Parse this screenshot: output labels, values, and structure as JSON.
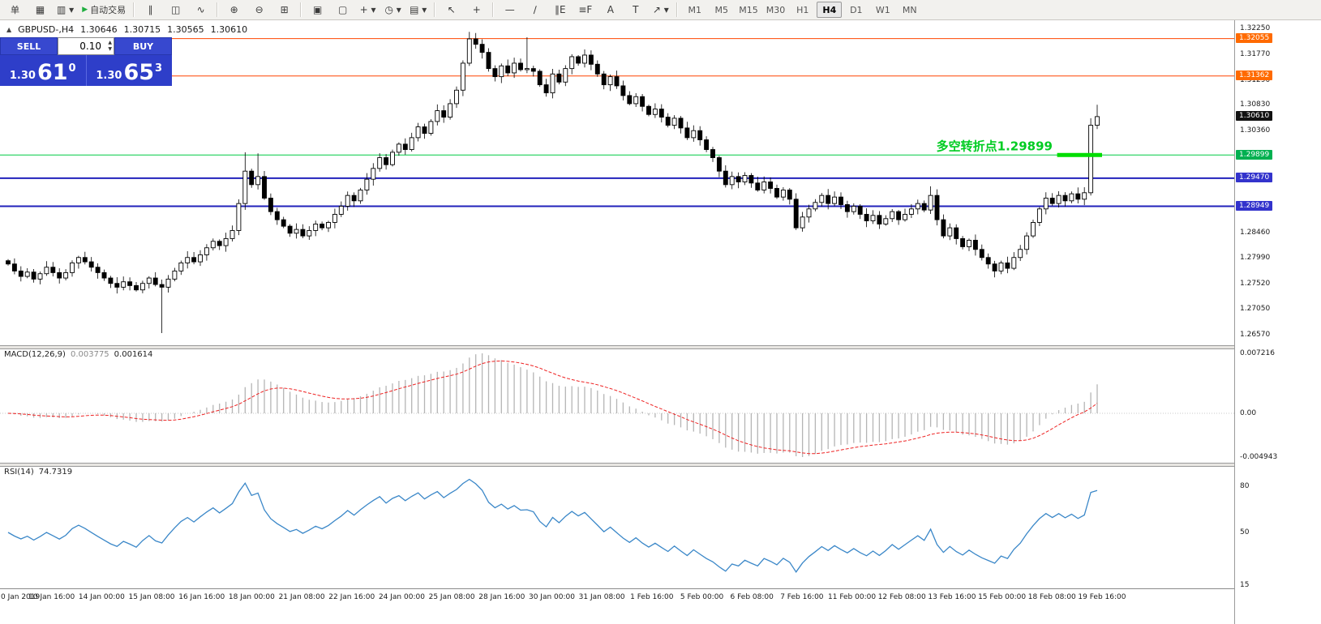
{
  "toolbar": {
    "items": [
      {
        "name": "new-order-button",
        "text": "单",
        "cls": "cn"
      },
      {
        "name": "new-chart-button",
        "text": "▦"
      },
      {
        "name": "profiles-button",
        "text": "▥ ▾"
      },
      {
        "name": "auto-trading-button",
        "text": "自动交易",
        "icon": "▶",
        "cls": "cn"
      },
      {
        "sep": true
      },
      {
        "name": "bar-chart-button",
        "text": "∥"
      },
      {
        "name": "candlestick-chart-button",
        "text": "◫"
      },
      {
        "name": "line-chart-button",
        "text": "∿"
      },
      {
        "sep": true
      },
      {
        "name": "zoom-in-button",
        "text": "⊕"
      },
      {
        "name": "zoom-out-button",
        "text": "⊖"
      },
      {
        "name": "tile-windows-button",
        "text": "⊞"
      },
      {
        "sep": true
      },
      {
        "name": "cascade-windows-button",
        "text": "▣"
      },
      {
        "name": "arrange-windows-button",
        "text": "▢"
      },
      {
        "name": "add-indicator-button",
        "text": "+ ▾"
      },
      {
        "name": "periods-button",
        "text": "◷ ▾"
      },
      {
        "name": "templates-button",
        "text": "▤ ▾"
      },
      {
        "sep": true
      },
      {
        "name": "cursor-button",
        "text": "↖"
      },
      {
        "name": "crosshair-button",
        "text": "+"
      },
      {
        "sep": true
      },
      {
        "name": "horizontal-line-button",
        "text": "—"
      },
      {
        "name": "trendline-button",
        "text": "∕"
      },
      {
        "name": "equidistant-channel-button",
        "text": "∥E"
      },
      {
        "name": "fibonacci-button",
        "text": "≡F"
      },
      {
        "name": "text-button",
        "text": "A"
      },
      {
        "name": "text-label-button",
        "text": "T"
      },
      {
        "name": "arrow-tools-button",
        "text": "↗ ▾"
      },
      {
        "sep": true
      }
    ],
    "timeframes": [
      "M1",
      "M5",
      "M15",
      "M30",
      "H1",
      "H4",
      "D1",
      "W1",
      "MN"
    ],
    "active_timeframe": "H4"
  },
  "chart_header": {
    "collapse_icon": "▲",
    "symbol_period": "GBPUSD-,H4",
    "open": "1.30646",
    "high": "1.30715",
    "low": "1.30565",
    "close": "1.30610"
  },
  "trade_panel": {
    "sell_label": "SELL",
    "buy_label": "BUY",
    "volume": "0.10",
    "spin_up": "▲",
    "spin_down": "▼",
    "sell_big": "1.30",
    "sell_mid": "61",
    "sell_sup": "0",
    "buy_big": "1.30",
    "buy_mid": "65",
    "buy_sup": "3"
  },
  "macd_panel": {
    "label": "MACD(12,26,9)",
    "value1": "0.003775",
    "value2": "0.001614",
    "axis": [
      "0.007216",
      "0.00",
      "-0.004943"
    ]
  },
  "rsi_panel": {
    "label": "RSI(14)",
    "value": "74.7319",
    "axis": [
      "80",
      "50",
      "15"
    ]
  },
  "time_axis": {
    "labels": [
      "0 Jan 2019",
      "10 Jan 16:00",
      "14 Jan 00:00",
      "15 Jan 08:00",
      "16 Jan 16:00",
      "18 Jan 00:00",
      "21 Jan 08:00",
      "22 Jan 16:00",
      "24 Jan 00:00",
      "25 Jan 08:00",
      "28 Jan 16:00",
      "30 Jan 00:00",
      "31 Jan 08:00",
      "1 Feb 16:00",
      "5 Feb 00:00",
      "6 Feb 08:00",
      "7 Feb 16:00",
      "11 Feb 00:00",
      "12 Feb 08:00",
      "13 Feb 16:00",
      "15 Feb 00:00",
      "18 Feb 08:00",
      "19 Feb 16:00"
    ]
  },
  "chart_data": {
    "type": "candlestick",
    "title": "GBPUSD-,H4",
    "symbol": "GBPUSD",
    "period": "H4",
    "price_axis": {
      "max": 1.3235,
      "min": 1.2645,
      "ticks": [
        "1.32250",
        "1.31770",
        "1.31290",
        "1.30830",
        "1.30360",
        "1.29890",
        "1.29420",
        "1.28930",
        "1.28460",
        "1.27990",
        "1.27520",
        "1.27050",
        "1.26570"
      ]
    },
    "badges": [
      {
        "text": "1.32055",
        "price": 1.32055,
        "bg": "#ff6a00"
      },
      {
        "text": "1.31362",
        "price": 1.31362,
        "bg": "#ff6a00"
      },
      {
        "text": "1.30610",
        "price": 1.3061,
        "bg": "#111111"
      },
      {
        "text": "1.29899",
        "price": 1.29899,
        "bg": "#00b050"
      },
      {
        "text": "1.29470",
        "price": 1.2947,
        "bg": "#3333cc"
      },
      {
        "text": "1.28949",
        "price": 1.28949,
        "bg": "#3333cc"
      }
    ],
    "levels": [
      {
        "price": 1.32055,
        "color": "#ff4400",
        "width": 1
      },
      {
        "price": 1.31362,
        "color": "#ff4400",
        "width": 1
      },
      {
        "price": 1.29899,
        "color": "#00cc44",
        "width": 1
      },
      {
        "price": 1.2947,
        "color": "#2222bb",
        "width": 2
      },
      {
        "price": 1.28949,
        "color": "#2222bb",
        "width": 2
      }
    ],
    "annotation": {
      "text": "多空转折点1.29899",
      "color": "#00cc22",
      "price": 1.29899
    },
    "breakout_marker": {
      "price": 1.29899,
      "from_bar": 164,
      "to_bar": 170,
      "color": "#00dd00"
    },
    "closes": [
      1.2788,
      1.2775,
      1.2765,
      1.2773,
      1.276,
      1.277,
      1.2782,
      1.2772,
      1.2762,
      1.2772,
      1.279,
      1.28,
      1.2792,
      1.2782,
      1.2772,
      1.2762,
      1.2752,
      1.2745,
      1.2755,
      1.2748,
      1.274,
      1.2752,
      1.2762,
      1.275,
      1.2745,
      1.276,
      1.2775,
      1.279,
      1.28,
      1.2792,
      1.2805,
      1.2818,
      1.283,
      1.2822,
      1.2835,
      1.285,
      1.29,
      1.296,
      1.2935,
      1.295,
      1.291,
      1.2885,
      1.287,
      1.2858,
      1.2845,
      1.2852,
      1.284,
      1.285,
      1.2862,
      1.2855,
      1.2865,
      1.288,
      1.2895,
      1.2915,
      1.2905,
      1.2925,
      1.2945,
      1.2965,
      1.2985,
      1.2972,
      1.2995,
      1.301,
      1.3,
      1.3022,
      1.3042,
      1.303,
      1.3052,
      1.3072,
      1.306,
      1.3085,
      1.311,
      1.316,
      1.3205,
      1.3195,
      1.318,
      1.315,
      1.3135,
      1.3155,
      1.3142,
      1.316,
      1.3148,
      1.315,
      1.3145,
      1.312,
      1.3105,
      1.314,
      1.3125,
      1.315,
      1.3172,
      1.316,
      1.3175,
      1.3158,
      1.314,
      1.312,
      1.3135,
      1.3118,
      1.31,
      1.3085,
      1.3098,
      1.308,
      1.3065,
      1.3075,
      1.306,
      1.3045,
      1.3058,
      1.304,
      1.3022,
      1.3035,
      1.3018,
      1.3,
      1.2985,
      1.296,
      1.2935,
      1.295,
      1.294,
      1.2952,
      1.2938,
      1.2925,
      1.294,
      1.2928,
      1.2912,
      1.2925,
      1.2908,
      1.2855,
      1.2875,
      1.289,
      1.2902,
      1.2915,
      1.29,
      1.2912,
      1.2898,
      1.2885,
      1.2895,
      1.288,
      1.2868,
      1.2878,
      1.2862,
      1.2872,
      1.2885,
      1.287,
      1.288,
      1.289,
      1.29,
      1.2888,
      1.2915,
      1.287,
      1.284,
      1.2855,
      1.2835,
      1.282,
      1.2832,
      1.2815,
      1.28,
      1.2788,
      1.2775,
      1.279,
      1.278,
      1.28,
      1.2815,
      1.284,
      1.2865,
      1.289,
      1.291,
      1.29,
      1.2915,
      1.2905,
      1.2918,
      1.2908,
      1.292,
      1.3045,
      1.3061
    ],
    "overrides": {
      "24": {
        "low": 1.266
      },
      "37": {
        "high": 1.2995
      },
      "39": {
        "high": 1.2993
      },
      "72": {
        "high": 1.3218
      },
      "81": {
        "high": 1.3208
      },
      "144": {
        "high": 1.2932
      },
      "169": {
        "high": 1.3058
      },
      "170": {
        "high": 1.3083,
        "low": 1.3038
      }
    }
  }
}
